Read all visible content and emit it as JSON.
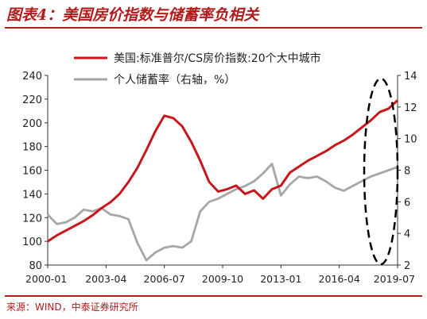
{
  "header": {
    "title": "图表4：美国房价指数与储蓄率负相关"
  },
  "footer": {
    "source": "来源：WIND，中泰证券研究所"
  },
  "chart_data": {
    "type": "line",
    "x_ticks": [
      "2000-01",
      "2003-04",
      "2006-07",
      "2009-10",
      "2013-01",
      "2016-04",
      "2019-07"
    ],
    "y_left": {
      "ylim": [
        80,
        240
      ],
      "ticks": [
        80,
        100,
        120,
        140,
        160,
        180,
        200,
        220,
        240
      ]
    },
    "y_right": {
      "ylim": [
        2,
        14
      ],
      "ticks": [
        2,
        4,
        6,
        8,
        10,
        12,
        14
      ]
    },
    "legend_position": "top-center",
    "colors": {
      "house_price": "#c8161d",
      "saving_rate": "#a6a6a6",
      "ellipse": "#000000"
    },
    "annotation": "dashed ellipse around 2018-2019",
    "series": [
      {
        "name": "美国:标准普尔/CS房价指数:20个大中城市",
        "axis": "left",
        "x": [
          "2000-01",
          "2000-07",
          "2001-01",
          "2001-07",
          "2002-01",
          "2002-07",
          "2003-01",
          "2003-07",
          "2004-01",
          "2004-07",
          "2005-01",
          "2005-07",
          "2006-01",
          "2006-07",
          "2007-01",
          "2007-07",
          "2008-01",
          "2008-07",
          "2009-01",
          "2009-07",
          "2010-01",
          "2010-07",
          "2011-01",
          "2011-07",
          "2012-01",
          "2012-07",
          "2013-01",
          "2013-07",
          "2014-01",
          "2014-07",
          "2015-01",
          "2015-07",
          "2016-01",
          "2016-07",
          "2017-01",
          "2017-07",
          "2018-01",
          "2018-07",
          "2019-01",
          "2019-07"
        ],
        "values": [
          100,
          105,
          109,
          113,
          117,
          122,
          128,
          133,
          140,
          150,
          162,
          177,
          193,
          206,
          204,
          197,
          184,
          168,
          150,
          142,
          144,
          147,
          140,
          143,
          136,
          144,
          147,
          158,
          163,
          168,
          172,
          176,
          181,
          185,
          190,
          196,
          202,
          209,
          212,
          219
        ]
      },
      {
        "name": "个人储蓄率（右轴，%）",
        "axis": "right",
        "x": [
          "2000-01",
          "2000-07",
          "2001-01",
          "2001-07",
          "2002-01",
          "2002-07",
          "2003-01",
          "2003-07",
          "2004-01",
          "2004-07",
          "2005-01",
          "2005-07",
          "2006-01",
          "2006-07",
          "2007-01",
          "2007-07",
          "2008-01",
          "2008-07",
          "2009-01",
          "2009-07",
          "2010-01",
          "2010-07",
          "2011-01",
          "2011-07",
          "2012-01",
          "2012-07",
          "2013-01",
          "2013-07",
          "2014-01",
          "2014-07",
          "2015-01",
          "2015-07",
          "2016-01",
          "2016-07",
          "2017-01",
          "2017-07",
          "2018-01",
          "2018-07",
          "2019-01",
          "2019-07"
        ],
        "values": [
          5.2,
          4.6,
          4.7,
          5.0,
          5.5,
          5.4,
          5.6,
          5.2,
          5.1,
          4.9,
          3.4,
          2.3,
          2.8,
          3.1,
          3.2,
          3.1,
          3.5,
          5.4,
          6.0,
          6.2,
          6.5,
          6.8,
          7.0,
          7.3,
          7.8,
          8.4,
          6.4,
          7.1,
          7.6,
          7.5,
          7.6,
          7.3,
          6.9,
          6.7,
          7.0,
          7.3,
          7.6,
          7.8,
          8.0,
          8.2
        ]
      }
    ]
  }
}
